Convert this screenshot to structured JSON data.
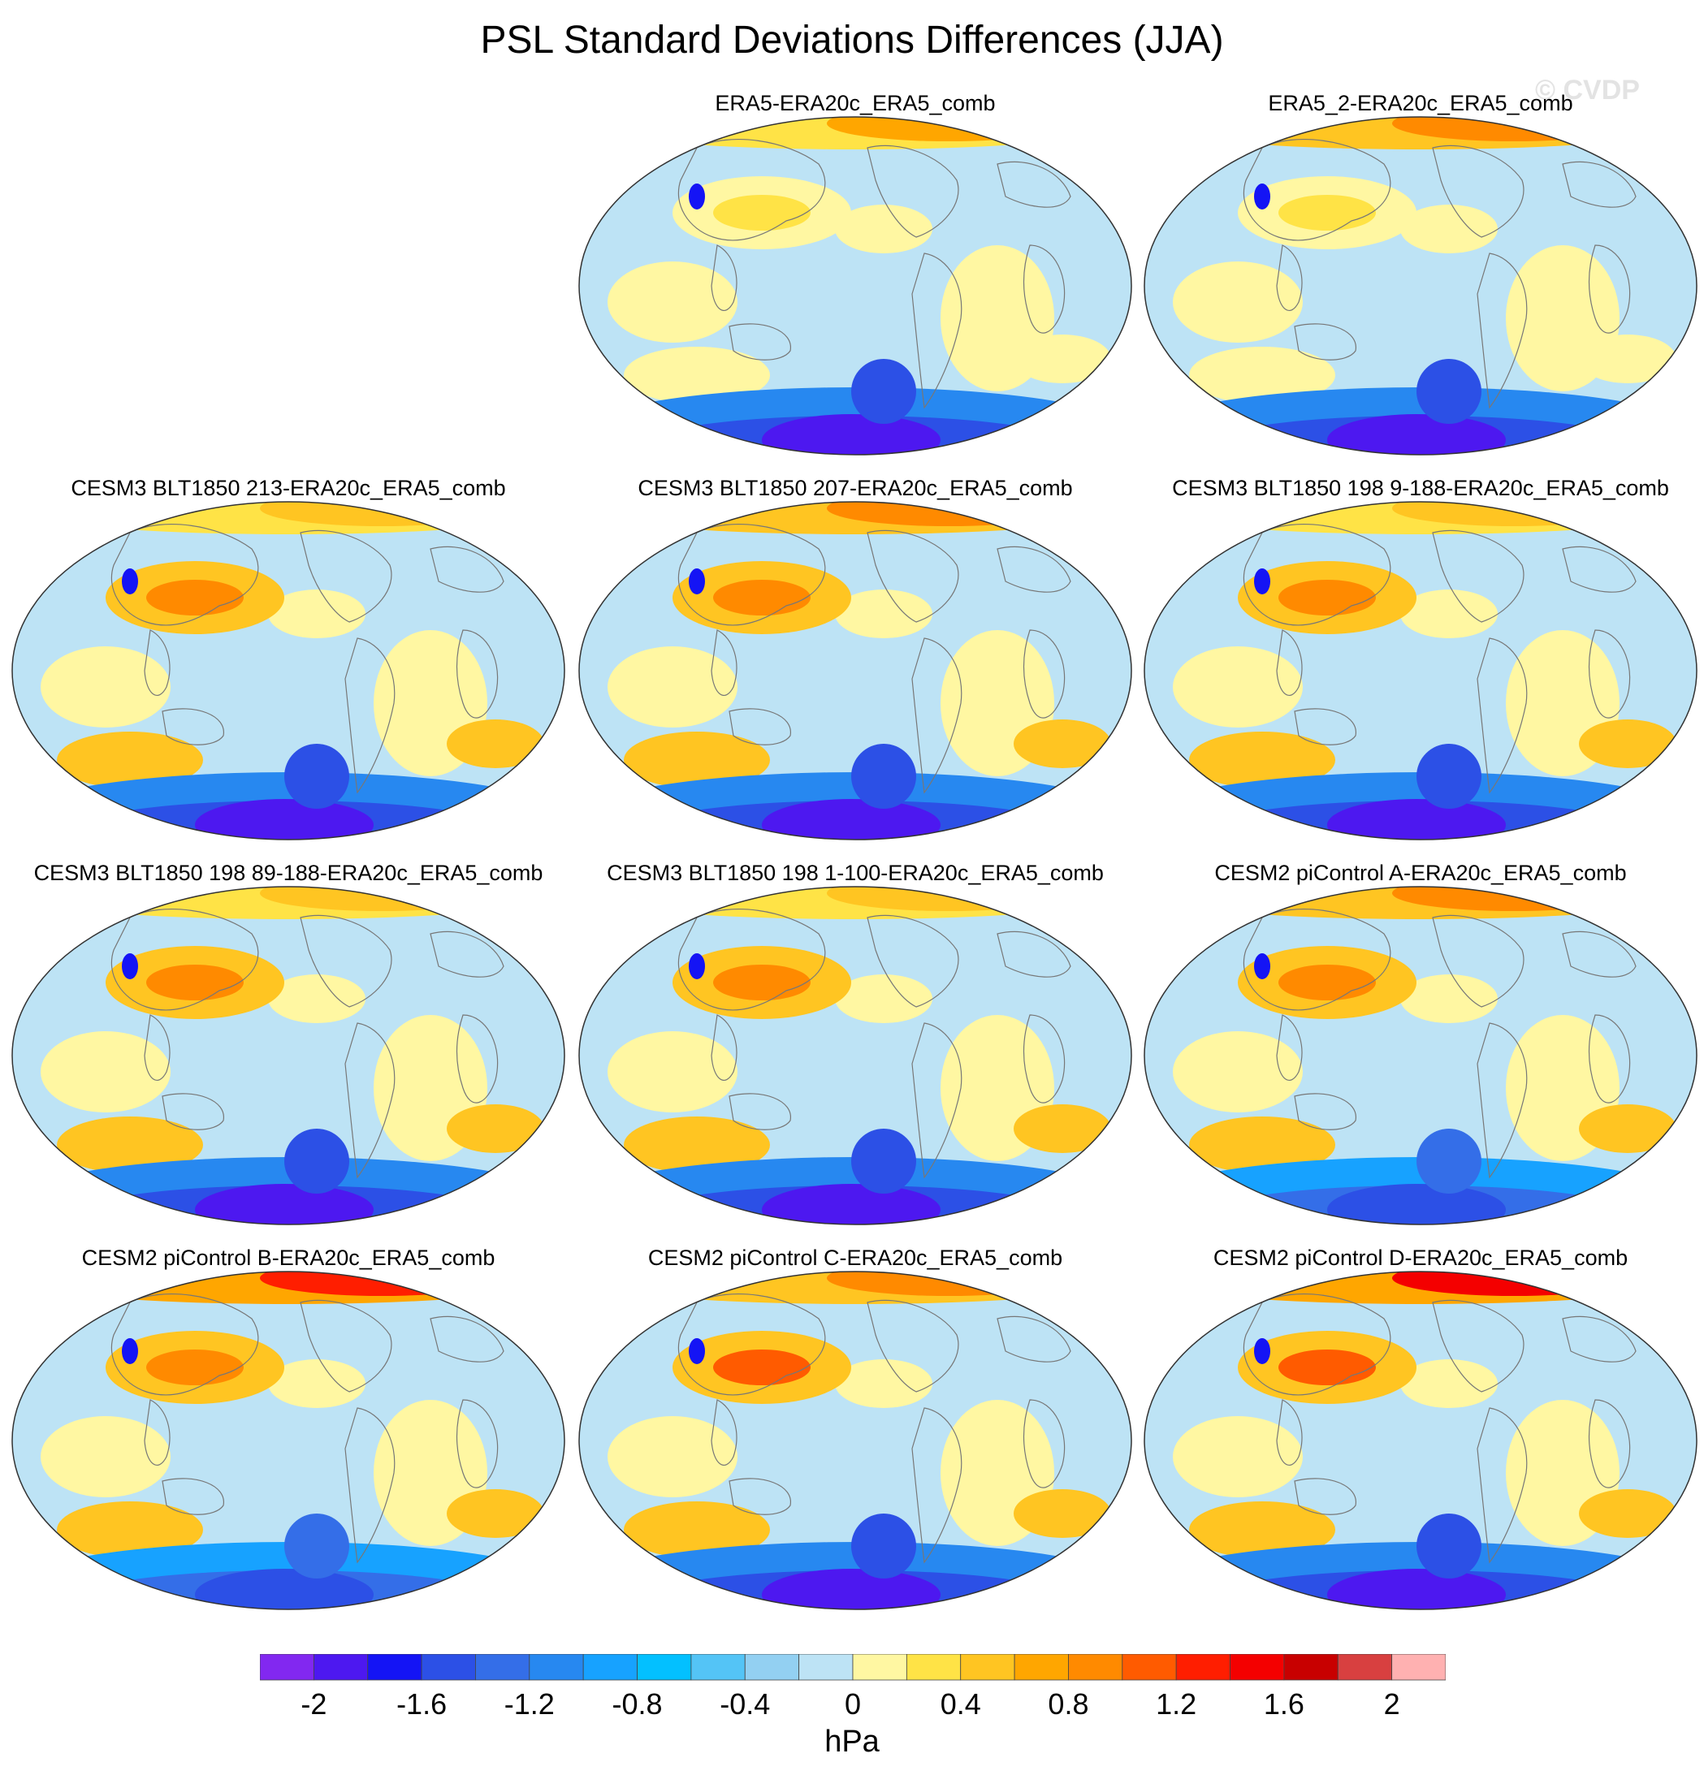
{
  "title": "PSL Standard Deviations Differences (JJA)",
  "watermark": "© CVDP",
  "panels": [
    {
      "label": "ERA5-ERA20c_ERA5_comb",
      "row": 0,
      "col": 1,
      "north_anom": 0.6,
      "south_anom": -2.0,
      "asia_anom": 0.2
    },
    {
      "label": "ERA5_2-ERA20c_ERA5_comb",
      "row": 0,
      "col": 2,
      "north_anom": 0.8,
      "south_anom": -2.0,
      "asia_anom": 0.2
    },
    {
      "label": "CESM3 BLT1850 213-ERA20c_ERA5_comb",
      "row": 1,
      "col": 0,
      "north_anom": 0.4,
      "south_anom": -2.0,
      "asia_anom": 0.8
    },
    {
      "label": "CESM3 BLT1850 207-ERA20c_ERA5_comb",
      "row": 1,
      "col": 1,
      "north_anom": 0.8,
      "south_anom": -2.0,
      "asia_anom": 0.8
    },
    {
      "label": "CESM3 BLT1850 198 9-188-ERA20c_ERA5_comb",
      "row": 1,
      "col": 2,
      "north_anom": 0.4,
      "south_anom": -2.0,
      "asia_anom": 0.8
    },
    {
      "label": "CESM3 BLT1850 198 89-188-ERA20c_ERA5_comb",
      "row": 2,
      "col": 0,
      "north_anom": 0.4,
      "south_anom": -2.0,
      "asia_anom": 0.8
    },
    {
      "label": "CESM3 BLT1850 198 1-100-ERA20c_ERA5_comb",
      "row": 2,
      "col": 1,
      "north_anom": 0.4,
      "south_anom": -2.0,
      "asia_anom": 0.8
    },
    {
      "label": "CESM2 piControl A-ERA20c_ERA5_comb",
      "row": 2,
      "col": 2,
      "north_anom": 0.8,
      "south_anom": -1.6,
      "asia_anom": 0.8
    },
    {
      "label": "CESM2 piControl B-ERA20c_ERA5_comb",
      "row": 3,
      "col": 0,
      "north_anom": 1.2,
      "south_anom": -1.6,
      "asia_anom": 0.8
    },
    {
      "label": "CESM2 piControl C-ERA20c_ERA5_comb",
      "row": 3,
      "col": 1,
      "north_anom": 0.8,
      "south_anom": -2.0,
      "asia_anom": 1.0
    },
    {
      "label": "CESM2 piControl D-ERA20c_ERA5_comb",
      "row": 3,
      "col": 2,
      "north_anom": 1.4,
      "south_anom": -2.0,
      "asia_anom": 1.0
    }
  ],
  "colorbar": {
    "colors": [
      "#8228f0",
      "#4d18f0",
      "#1414f5",
      "#2c50e6",
      "#346ee8",
      "#2788f0",
      "#17a2ff",
      "#03c0ff",
      "#54c4f6",
      "#93d0f2",
      "#bde3f5",
      "#fff7a2",
      "#ffe346",
      "#ffc522",
      "#ffa600",
      "#ff8a00",
      "#ff5b00",
      "#ff1e00",
      "#f40000",
      "#c80000",
      "#d84040",
      "#ffb1b1"
    ],
    "tick_labels": [
      "-2",
      "-1.6",
      "-1.2",
      "-0.8",
      "-0.4",
      "0",
      "0.4",
      "0.8",
      "1.2",
      "1.6",
      "2"
    ],
    "tick_values": [
      -2.0,
      -1.6,
      -1.2,
      -0.8,
      -0.4,
      0,
      0.4,
      0.8,
      1.2,
      1.6,
      2.0
    ],
    "units": "hPa"
  }
}
